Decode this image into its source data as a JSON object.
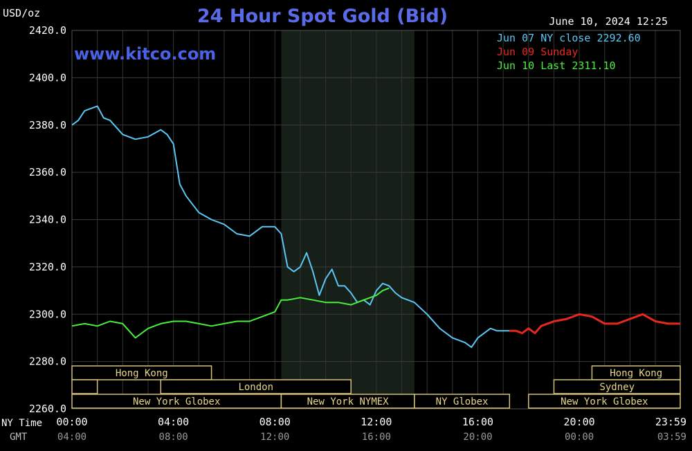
{
  "unit_label": "USD/oz",
  "title": "24 Hour Spot Gold (Bid)",
  "datetime": "June 10, 2024 12:25",
  "watermark": "www.kitco.com",
  "legend": [
    {
      "label": "Jun 07 NY close 2292.60",
      "color": "#5bc8f5"
    },
    {
      "label": "Jun 09 Sunday",
      "color": "#e8281e"
    },
    {
      "label": "Jun 10 Last 2311.10",
      "color": "#49f03c"
    }
  ],
  "axis_labels": {
    "ny_time": "NY Time",
    "gmt": "GMT"
  },
  "y_ticks": [
    "2420.0",
    "2400.0",
    "2380.0",
    "2360.0",
    "2340.0",
    "2320.0",
    "2300.0",
    "2280.0",
    "2260.0"
  ],
  "x_ticks_ny": [
    "00:00",
    "04:00",
    "08:00",
    "12:00",
    "16:00",
    "20:00",
    "23:59"
  ],
  "x_ticks_gmt": [
    "04:00",
    "08:00",
    "12:00",
    "16:00",
    "20:00",
    "00:00",
    "03:59"
  ],
  "sessions": [
    {
      "label": "Hong Kong",
      "row": 0,
      "start": 0,
      "end": 5.5
    },
    {
      "label": "Hong Kong",
      "row": 0,
      "start": 20.5,
      "end": 23.98
    },
    {
      "label": "",
      "row": 1,
      "start": 0,
      "end": 1
    },
    {
      "label": "London",
      "row": 1,
      "start": 3.5,
      "end": 11
    },
    {
      "label": "Sydney",
      "row": 1,
      "start": 19,
      "end": 23.98
    },
    {
      "label": "New York Globex",
      "row": 2,
      "start": 0,
      "end": 8.25
    },
    {
      "label": "New York NYMEX",
      "row": 2,
      "start": 8.25,
      "end": 13.5
    },
    {
      "label": "NY Globex",
      "row": 2,
      "start": 13.5,
      "end": 17.25
    },
    {
      "label": "New York Globex",
      "row": 2,
      "start": 18,
      "end": 23.98
    }
  ],
  "chart_data": {
    "type": "line",
    "title": "24 Hour Spot Gold (Bid)",
    "ylabel": "USD/oz",
    "xlabel": "NY Time",
    "ylim": [
      2260,
      2420
    ],
    "xlim_hours": [
      0,
      23.98
    ],
    "grid": true,
    "legend_position": "top-right",
    "shaded_session_hours": [
      8.25,
      13.5
    ],
    "series": [
      {
        "name": "Jun 07 NY close 2292.60",
        "color": "#5bc8f5",
        "x": [
          0,
          0.25,
          0.5,
          0.75,
          1,
          1.25,
          1.5,
          2,
          2.5,
          3,
          3.5,
          3.75,
          4,
          4.25,
          4.5,
          5,
          5.5,
          6,
          6.5,
          7,
          7.5,
          8,
          8.25,
          8.5,
          8.75,
          9,
          9.25,
          9.5,
          9.75,
          10,
          10.25,
          10.5,
          10.75,
          11,
          11.25,
          11.5,
          11.75,
          12,
          12.25,
          12.5,
          12.75,
          13,
          13.5,
          14,
          14.5,
          15,
          15.5,
          15.75,
          16,
          16.25,
          16.5,
          16.75,
          17,
          17.25
        ],
        "y": [
          2380,
          2382,
          2386,
          2387,
          2388,
          2383,
          2382,
          2376,
          2374,
          2375,
          2378,
          2376,
          2372,
          2355,
          2350,
          2343,
          2340,
          2338,
          2334,
          2333,
          2337,
          2337,
          2334,
          2320,
          2318,
          2320,
          2326,
          2318,
          2308,
          2315,
          2319,
          2312,
          2312,
          2309,
          2305,
          2306,
          2304,
          2310,
          2313,
          2312,
          2309,
          2307,
          2305,
          2300,
          2294,
          2290,
          2288,
          2286,
          2290,
          2292,
          2294,
          2293,
          2293,
          2293
        ]
      },
      {
        "name": "Jun 09 Sunday",
        "color": "#e8281e",
        "x": [
          17.25,
          17.5,
          17.75,
          18,
          18.25,
          18.5,
          19,
          19.5,
          20,
          20.5,
          21,
          21.5,
          22,
          22.5,
          23,
          23.5,
          23.98
        ],
        "y": [
          2293,
          2293,
          2292,
          2294,
          2292,
          2295,
          2297,
          2298,
          2300,
          2299,
          2296,
          2296,
          2298,
          2300,
          2297,
          2296,
          2296
        ]
      },
      {
        "name": "Jun 10 Last 2311.10",
        "color": "#49f03c",
        "x": [
          0,
          0.5,
          1,
          1.5,
          2,
          2.5,
          2.75,
          3,
          3.5,
          4,
          4.5,
          5,
          5.5,
          6,
          6.5,
          7,
          7.5,
          8,
          8.25,
          8.5,
          9,
          9.5,
          10,
          10.5,
          11,
          11.5,
          12,
          12.25,
          12.5
        ],
        "y": [
          2295,
          2296,
          2295,
          2297,
          2296,
          2290,
          2292,
          2294,
          2296,
          2297,
          2297,
          2296,
          2295,
          2296,
          2297,
          2297,
          2299,
          2301,
          2306,
          2306,
          2307,
          2306,
          2305,
          2305,
          2304,
          2306,
          2308,
          2310,
          2311
        ]
      }
    ]
  }
}
